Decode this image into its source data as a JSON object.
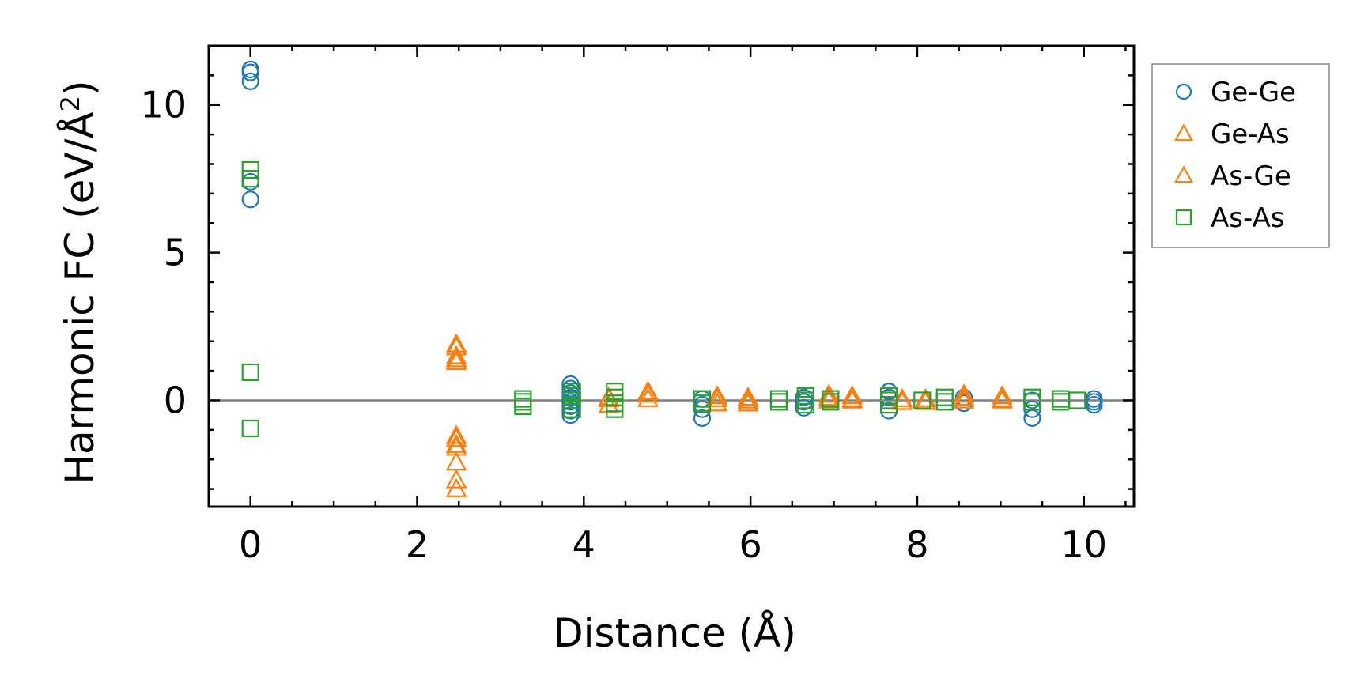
{
  "chart_data": {
    "type": "scatter",
    "xlabel": "Distance (Å)",
    "ylabel": "Harmonic FC (eV/Å",
    "ylabel_sup": "2",
    "ylabel_end": ")",
    "xlim": [
      -0.5,
      10.6
    ],
    "ylim": [
      -3.6,
      12.0
    ],
    "x_ticks": [
      0,
      2,
      4,
      6,
      8,
      10
    ],
    "x_tick_labels": [
      "0",
      "2",
      "4",
      "6",
      "8",
      "10"
    ],
    "y_ticks": [
      0,
      5,
      10
    ],
    "y_tick_labels": [
      "0",
      "5",
      "10"
    ],
    "reference_line_y": 0,
    "legend_position": "outside-right",
    "series": [
      {
        "name": "Ge-Ge",
        "marker": "circle",
        "color": "#1f77b4",
        "points": [
          [
            0,
            11.2
          ],
          [
            0,
            11.1
          ],
          [
            0,
            10.8
          ],
          [
            0,
            7.4
          ],
          [
            0,
            6.8
          ],
          [
            3.84,
            0.55
          ],
          [
            3.84,
            0.4
          ],
          [
            3.84,
            0.25
          ],
          [
            3.84,
            0.1
          ],
          [
            3.84,
            -0.05
          ],
          [
            3.84,
            -0.2
          ],
          [
            3.84,
            -0.35
          ],
          [
            3.84,
            -0.5
          ],
          [
            5.42,
            0.05
          ],
          [
            5.42,
            -0.15
          ],
          [
            5.42,
            -0.3
          ],
          [
            5.42,
            -0.6
          ],
          [
            6.64,
            0.1
          ],
          [
            6.64,
            -0.05
          ],
          [
            6.64,
            -0.25
          ],
          [
            7.66,
            0.3
          ],
          [
            7.66,
            0.1
          ],
          [
            7.66,
            -0.35
          ],
          [
            8.56,
            0.1
          ],
          [
            8.56,
            -0.1
          ],
          [
            9.38,
            0.0
          ],
          [
            9.38,
            -0.3
          ],
          [
            9.38,
            -0.6
          ],
          [
            10.12,
            0.05
          ],
          [
            10.12,
            -0.05
          ],
          [
            10.12,
            -0.15
          ]
        ]
      },
      {
        "name": "Ge-As",
        "marker": "triangle",
        "color": "#ff7f0e",
        "points": [
          [
            2.47,
            1.9
          ],
          [
            2.47,
            1.5
          ],
          [
            2.47,
            1.3
          ],
          [
            2.47,
            -1.3
          ],
          [
            2.47,
            -1.5
          ],
          [
            2.47,
            -2.1
          ],
          [
            2.47,
            -2.7
          ],
          [
            2.47,
            -3.0
          ],
          [
            4.3,
            0.1
          ],
          [
            4.3,
            -0.15
          ],
          [
            4.77,
            0.3
          ],
          [
            4.77,
            0.05
          ],
          [
            5.6,
            0.15
          ],
          [
            5.6,
            -0.1
          ],
          [
            5.97,
            0.1
          ],
          [
            5.97,
            -0.1
          ],
          [
            6.94,
            0.2
          ],
          [
            6.94,
            0.0
          ],
          [
            7.22,
            0.15
          ],
          [
            7.22,
            0.0
          ],
          [
            7.82,
            0.05
          ],
          [
            7.82,
            -0.05
          ],
          [
            8.1,
            0.05
          ],
          [
            8.1,
            -0.05
          ],
          [
            8.56,
            0.2
          ],
          [
            8.56,
            0.0
          ],
          [
            9.02,
            0.15
          ],
          [
            9.02,
            0.0
          ]
        ]
      },
      {
        "name": "As-Ge",
        "marker": "triangle",
        "color": "#ff7f0e",
        "points": [
          [
            2.47,
            1.8
          ],
          [
            2.47,
            1.4
          ],
          [
            2.47,
            -1.2
          ],
          [
            2.47,
            -1.6
          ],
          [
            4.3,
            0.05
          ],
          [
            4.77,
            0.2
          ],
          [
            5.6,
            0.05
          ],
          [
            5.97,
            0.0
          ],
          [
            6.94,
            0.1
          ],
          [
            7.22,
            0.05
          ],
          [
            8.56,
            0.1
          ],
          [
            9.02,
            0.05
          ]
        ]
      },
      {
        "name": "As-As",
        "marker": "square",
        "color": "#2ca02c",
        "points": [
          [
            0,
            7.8
          ],
          [
            0,
            7.5
          ],
          [
            0,
            0.95
          ],
          [
            0,
            -0.95
          ],
          [
            3.27,
            0.05
          ],
          [
            3.27,
            -0.05
          ],
          [
            3.27,
            -0.2
          ],
          [
            3.86,
            0.3
          ],
          [
            3.86,
            0.15
          ],
          [
            3.86,
            0.0
          ],
          [
            3.86,
            -0.15
          ],
          [
            3.86,
            -0.3
          ],
          [
            4.37,
            0.3
          ],
          [
            4.37,
            0.1
          ],
          [
            4.37,
            -0.1
          ],
          [
            4.37,
            -0.3
          ],
          [
            5.42,
            0.05
          ],
          [
            5.42,
            -0.1
          ],
          [
            6.34,
            0.05
          ],
          [
            6.34,
            -0.05
          ],
          [
            6.66,
            0.15
          ],
          [
            6.66,
            0.0
          ],
          [
            6.66,
            -0.15
          ],
          [
            6.96,
            0.05
          ],
          [
            6.96,
            -0.05
          ],
          [
            7.66,
            0.15
          ],
          [
            7.66,
            0.0
          ],
          [
            7.66,
            -0.15
          ],
          [
            8.06,
            0.0
          ],
          [
            8.33,
            0.1
          ],
          [
            8.33,
            -0.05
          ],
          [
            9.38,
            0.1
          ],
          [
            9.38,
            -0.05
          ],
          [
            9.72,
            0.05
          ],
          [
            9.72,
            -0.05
          ],
          [
            9.92,
            0.0
          ]
        ]
      }
    ]
  }
}
